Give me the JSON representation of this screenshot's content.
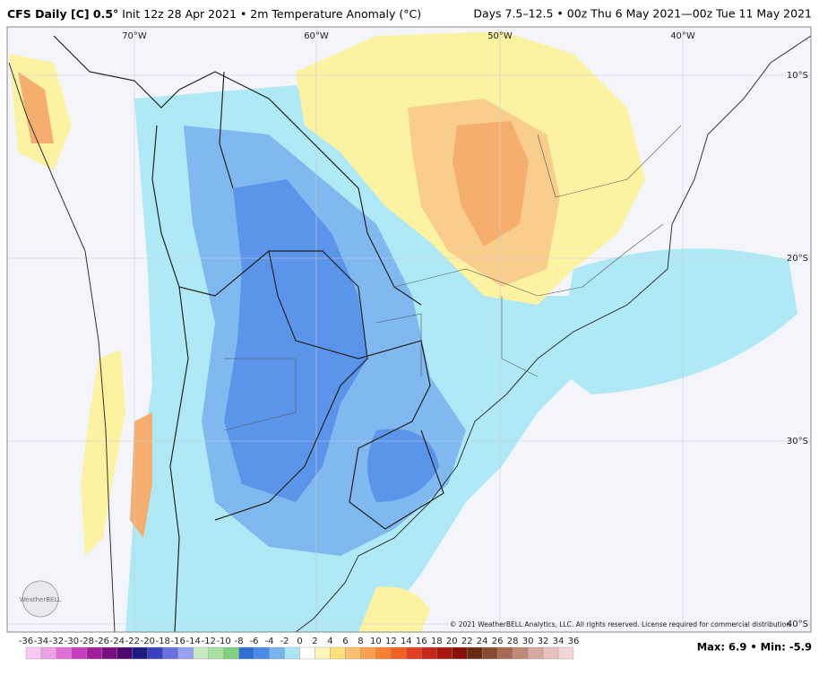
{
  "header": {
    "title_bold": "CFS Daily [C] 0.5°",
    "title_rest": "Init 12z 28 Apr 2021 • 2m Temperature Anomaly (°C)",
    "period": "Days 7.5–12.5 • 00z Thu 6 May 2021—00z Tue 11 May 2021"
  },
  "map": {
    "lon_labels": [
      "70°W",
      "60°W",
      "50°W",
      "40°W"
    ],
    "lat_labels": [
      "10°S",
      "20°S",
      "30°S",
      "40°S"
    ],
    "logo": "WeatherBELL",
    "copyright": "© 2021 WeatherBELL Analytics, LLC. All rights reserved. License required for commercial distribution"
  },
  "colorbar": {
    "ticks": [
      -36,
      -34,
      -32,
      -30,
      -28,
      -26,
      -24,
      -22,
      -20,
      -18,
      -16,
      -14,
      -12,
      -10,
      -8,
      -6,
      -4,
      -2,
      0,
      2,
      4,
      6,
      8,
      10,
      12,
      14,
      16,
      18,
      20,
      22,
      24,
      26,
      28,
      30,
      32,
      34,
      36
    ],
    "colors": [
      "#f9c9ef",
      "#f0a0e6",
      "#e070d8",
      "#c83cc0",
      "#a0209c",
      "#7a1080",
      "#4a0a70",
      "#1e1a80",
      "#3a40c0",
      "#6a70e0",
      "#9aa0f0",
      "#c8e8c0",
      "#a8e0a0",
      "#80d080",
      "#2e6fd8",
      "#4a8ae8",
      "#7ab2f0",
      "#a8e6f5",
      "#ffffff",
      "#fdf6b8",
      "#fce07a",
      "#fcc070",
      "#fba050",
      "#f88030",
      "#f06020",
      "#e04020",
      "#c82818",
      "#a81810",
      "#881008",
      "#6a2a10",
      "#8a4a30",
      "#a86a50",
      "#c08a78",
      "#d8a8a0",
      "#e8c0c0",
      "#f0d8d8"
    ]
  },
  "summary": "Max: 6.9 • Min: -5.9"
}
